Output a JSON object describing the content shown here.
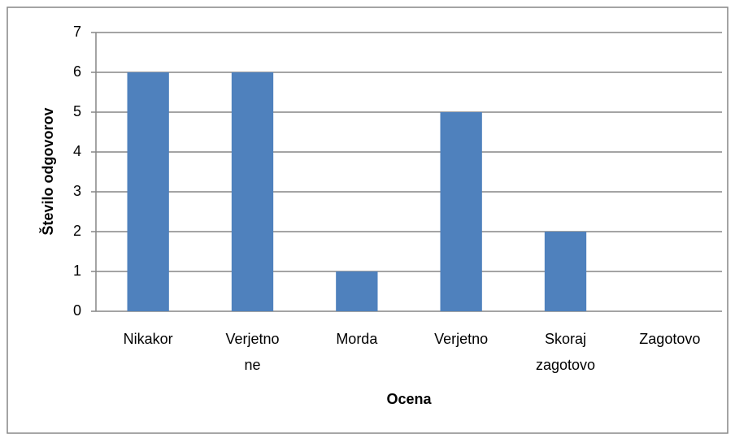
{
  "chart_data": {
    "type": "bar",
    "categories": [
      "Nikakor",
      "Verjetno ne",
      "Morda",
      "Verjetno",
      "Skoraj zagotovo",
      "Zagotovo"
    ],
    "values": [
      6,
      6,
      1,
      5,
      2,
      0
    ],
    "color": "#4f81bd",
    "x_label": "Ocena",
    "y_label": "Število odgovorov",
    "ylim": [
      0,
      7
    ],
    "yticks": [
      0,
      1,
      2,
      3,
      4,
      5,
      6,
      7
    ],
    "grid": true
  }
}
